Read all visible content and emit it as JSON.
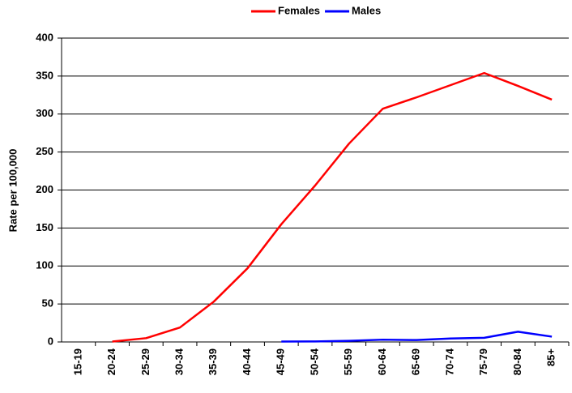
{
  "chart_data": {
    "type": "line",
    "y_label": "Rate per 100,000",
    "categories": [
      "15-19",
      "20-24",
      "25-29",
      "30-34",
      "35-39",
      "40-44",
      "45-49",
      "50-54",
      "55-59",
      "60-64",
      "65-69",
      "70-74",
      "75-79",
      "80-84",
      "85+"
    ],
    "series": [
      {
        "name": "Females",
        "color": "#ff0000",
        "values": [
          null,
          0.5,
          5,
          19,
          53,
          97,
          155,
          206,
          261,
          307,
          322,
          338,
          354,
          337,
          319
        ]
      },
      {
        "name": "Males",
        "color": "#0000ff",
        "values": [
          null,
          null,
          null,
          null,
          null,
          null,
          0.5,
          0.7,
          1.5,
          3,
          2.5,
          4.5,
          5.5,
          13.5,
          7
        ]
      }
    ],
    "ylim": [
      0,
      400
    ],
    "yticks": [
      0,
      50,
      100,
      150,
      200,
      250,
      300,
      350,
      400
    ],
    "grid": true,
    "legend": "top"
  }
}
